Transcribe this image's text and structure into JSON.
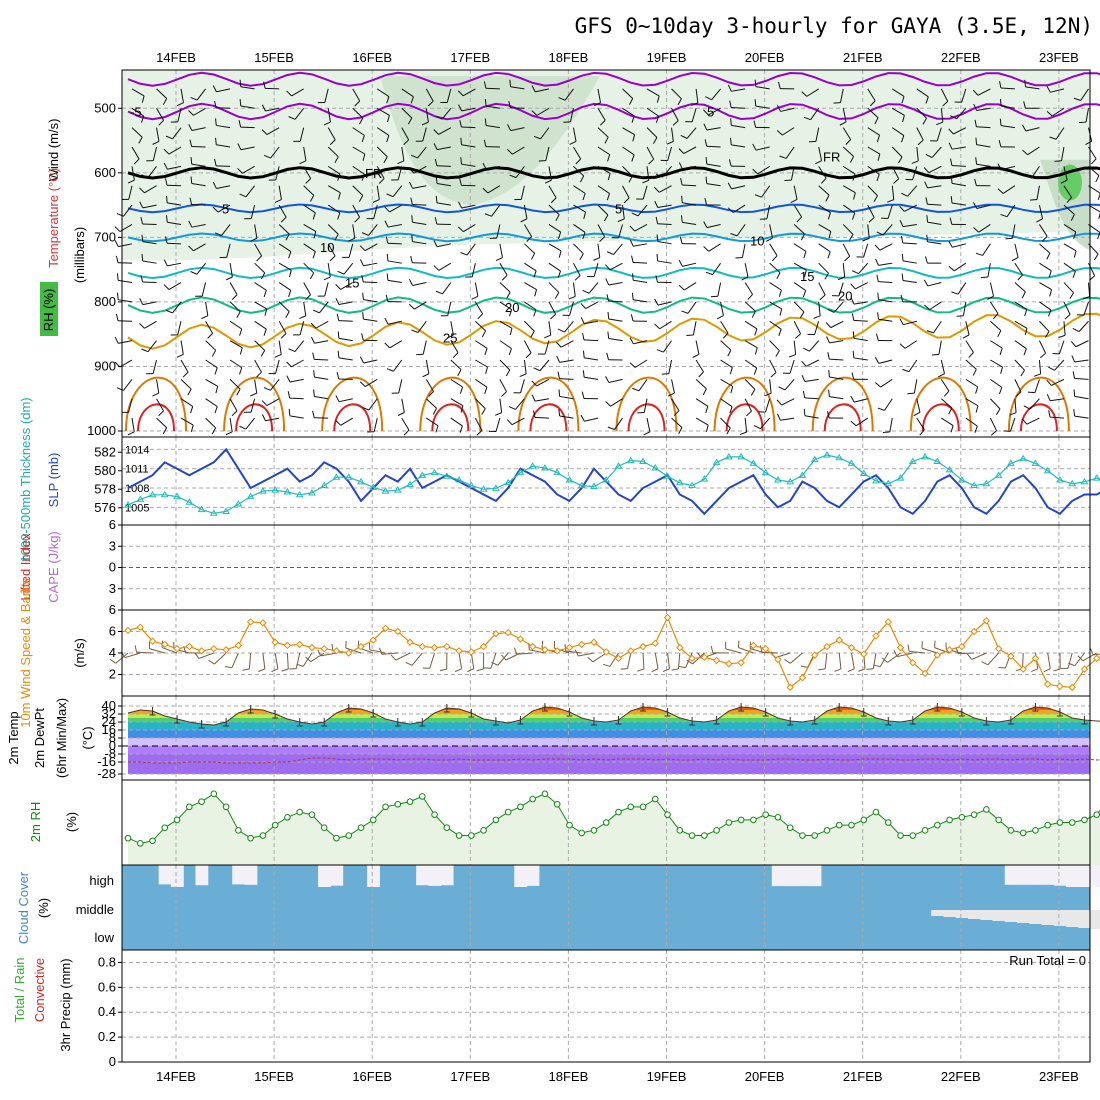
{
  "chart_data": {
    "title": "GFS 0~10day 3-hourly for GAYA (3.5E, 12N)",
    "dates": [
      "14FEB",
      "15FEB",
      "16FEB",
      "17FEB",
      "18FEB",
      "19FEB",
      "20FEB",
      "21FEB",
      "22FEB",
      "23FEB"
    ],
    "panels": [
      {
        "id": "upper_air",
        "type": "heatmap",
        "labels": {
          "wind": "Wind (m/s)",
          "temp": "Temperature (°C)",
          "rh": "RH (%)",
          "units": "(millibars)"
        },
        "y_ticks": [
          500,
          600,
          700,
          800,
          900,
          1000
        ],
        "ylim": [
          450,
          1000
        ],
        "isotherm_labels": [
          "-5",
          "5",
          "FR",
          "5",
          "10",
          "15",
          "20",
          "25",
          "10",
          "30"
        ],
        "temp_line_colors": {
          "-5": "#9900cc",
          "FR": "#000000",
          "5": "#1155dd",
          "10": "#1199dd",
          "15": "#11bbbb",
          "20": "#11bb88",
          "25": "#dd9900",
          "30": "#dd5500",
          "35": "#dd2222"
        }
      },
      {
        "id": "thickness_slp",
        "type": "line",
        "labels": {
          "left": "1000-500mb Thickness (dm)",
          "right": "SLP (mb)"
        },
        "left_ticks": [
          576,
          578,
          580,
          582
        ],
        "right_ticks": [
          1005,
          1008,
          1011,
          1014
        ],
        "x": [
          0,
          3,
          6,
          9,
          12,
          15,
          18,
          21,
          24,
          27,
          30,
          33,
          36,
          39,
          42,
          45,
          48,
          51,
          54,
          57,
          60,
          63,
          66,
          69,
          72,
          75,
          78,
          81,
          84,
          87,
          90,
          93,
          96,
          99,
          102,
          105,
          108,
          111,
          114,
          117,
          120,
          123,
          126,
          129,
          132,
          135,
          138,
          141,
          144,
          147,
          150,
          153,
          156,
          159,
          162,
          165,
          168,
          171,
          174,
          177,
          180,
          183,
          186,
          189,
          192,
          195,
          198,
          201,
          204,
          207,
          210,
          213,
          216,
          219,
          222,
          225,
          228,
          231,
          234,
          237,
          240
        ],
        "series": [
          {
            "name": "1000-500mb Thickness",
            "units": "dm",
            "color": "#22bbbb",
            "values": [
              576.3,
              576.9,
              577.4,
              577.4,
              577.2,
              576.6,
              575.8,
              575.4,
              575.6,
              576.4,
              577.2,
              577.8,
              577.9,
              577.7,
              577.4,
              577.6,
              578.4,
              579.3,
              579.3,
              578.8,
              578.2,
              577.8,
              577.9,
              578.5,
              579.5,
              579.8,
              579.4,
              579.0,
              578.4,
              578.0,
              578.1,
              578.7,
              579.8,
              580.5,
              580.3,
              579.8,
              579.0,
              578.4,
              578.3,
              579.0,
              580.5,
              581.1,
              581.0,
              580.3,
              579.4,
              578.7,
              578.4,
              579.1,
              580.9,
              581.5,
              581.5,
              580.8,
              579.8,
              579.0,
              578.8,
              579.5,
              581.2,
              581.7,
              581.4,
              580.8,
              579.7,
              578.9,
              578.6,
              579.2,
              581.0,
              581.5,
              581.0,
              580.1,
              579.0,
              578.4,
              578.6,
              579.5,
              580.8,
              581.3,
              580.8,
              580.0,
              579.0,
              578.6,
              578.8,
              579.2,
              578.7
            ]
          },
          {
            "name": "SLP",
            "units": "mb",
            "color": "#2244cc",
            "values": [
              1008,
              1009,
              1010,
              1012,
              1011,
              1010,
              1011,
              1012,
              1014,
              1011,
              1008,
              1009,
              1010,
              1011,
              1009,
              1010,
              1012,
              1011,
              1009,
              1006,
              1008,
              1010,
              1009,
              1011,
              1008,
              1009,
              1010,
              1009,
              1008,
              1007,
              1006,
              1008,
              1011,
              1010,
              1009,
              1007,
              1006,
              1008,
              1011,
              1009,
              1007,
              1006,
              1008,
              1009,
              1010,
              1007,
              1006,
              1004,
              1006,
              1008,
              1009,
              1010,
              1007,
              1005,
              1006,
              1009,
              1008,
              1006,
              1005,
              1007,
              1009,
              1010,
              1008,
              1005,
              1004,
              1006,
              1009,
              1010,
              1008,
              1005,
              1004,
              1006,
              1009,
              1010,
              1008,
              1005,
              1004,
              1006,
              1007,
              1007,
              1008
            ]
          }
        ]
      },
      {
        "id": "instability",
        "type": "line",
        "labels": {
          "left": "Lifted Index",
          "right": "CAPE (J/kg)"
        },
        "y_ticks": [
          -6,
          -3,
          0,
          3,
          6
        ],
        "ylim": [
          -6,
          6
        ],
        "reference_line": 0
      },
      {
        "id": "wind10m",
        "type": "line",
        "labels": {
          "main": "10m Wind Speed & Barbs",
          "units": "(m/s)"
        },
        "y_ticks": [
          2,
          4,
          6
        ],
        "ylim": [
          0,
          8
        ],
        "series": [
          {
            "name": "10m Wind Speed",
            "color": "#ee8800",
            "values": [
              6.1,
              6.4,
              5.1,
              4.8,
              4.4,
              4.6,
              4.2,
              4.4,
              4.3,
              4.7,
              6.9,
              6.8,
              5.0,
              4.7,
              4.8,
              4.5,
              4.4,
              4.2,
              4.0,
              4.6,
              5.2,
              6.3,
              6.0,
              5.0,
              4.6,
              4.5,
              4.6,
              4.2,
              4.1,
              4.6,
              5.8,
              5.9,
              5.3,
              4.6,
              4.3,
              4.2,
              4.5,
              4.8,
              5.0,
              4.1,
              3.5,
              4.2,
              4.6,
              4.9,
              7.3,
              4.5,
              3.5,
              3.6,
              3.3,
              3.0,
              3.1,
              4.7,
              4.4,
              3.4,
              0.8,
              1.7,
              3.8,
              4.6,
              5.2,
              4.5,
              3.9,
              5.6,
              6.9,
              4.5,
              3.1,
              2.1,
              3.8,
              4.3,
              4.6,
              6.0,
              7.0,
              4.4,
              3.7,
              2.5,
              3.5,
              1.1,
              0.9,
              0.8,
              2.5,
              3.5,
              3.2
            ]
          }
        ]
      },
      {
        "id": "temperature2m",
        "type": "area",
        "labels": {
          "main": "2m Temp",
          "dewpt": "2m DewPt",
          "minmax": "(6hr Min/Max)",
          "units": "(°C)"
        },
        "y_ticks": [
          "40",
          "32",
          "24",
          "16",
          "8",
          "0",
          "-8",
          "-16",
          "-28"
        ],
        "ylim": [
          -28,
          40
        ],
        "series": [
          {
            "name": "2m Temp",
            "values": [
              33,
              36,
              35,
              30,
              27,
              24,
              22,
              21,
              24,
              33,
              37,
              36,
              32,
              27,
              24,
              22,
              24,
              33,
              38,
              37,
              33,
              27,
              24,
              22,
              24,
              33,
              38,
              37,
              33,
              27,
              25,
              23,
              26,
              35,
              39,
              38,
              34,
              28,
              25,
              24,
              26,
              35,
              39,
              38,
              34,
              28,
              25,
              24,
              26,
              35,
              39,
              38,
              34,
              28,
              25,
              24,
              26,
              35,
              39,
              38,
              34,
              28,
              25,
              24,
              26,
              35,
              39,
              38,
              34,
              28,
              25,
              24,
              26,
              35,
              39,
              38,
              34,
              28,
              26,
              25,
              24
            ]
          },
          {
            "name": "2m DewPt",
            "values": [
              -16,
              -16,
              -17,
              -17,
              -17,
              -16,
              -16,
              -16,
              -17,
              -17,
              -17,
              -17,
              -16,
              -16,
              -14,
              -12,
              -12,
              -13,
              -14,
              -13,
              -13,
              -13,
              -14,
              -13,
              -13,
              -14,
              -14,
              -13,
              -14,
              -14,
              -14,
              -14,
              -13,
              -14,
              -13,
              -13,
              -13,
              -14,
              -13,
              -14,
              -13,
              -13,
              -13,
              -14,
              -13,
              -14,
              -14,
              -13,
              -14,
              -13,
              -14,
              -14,
              -14,
              -13,
              -13,
              -14,
              -14,
              -13,
              -14,
              -14,
              -13,
              -13,
              -13,
              -14,
              -14,
              -13,
              -13,
              -14,
              -13,
              -14,
              -13,
              -13,
              -14,
              -13,
              -13,
              -14,
              -13,
              -14,
              -13,
              -14,
              -13
            ]
          }
        ]
      },
      {
        "id": "rh2m",
        "type": "line",
        "labels": {
          "main": "2m RH",
          "units": "(%)"
        },
        "series": [
          {
            "name": "2m RH",
            "color": "#118811",
            "values": [
              8,
              6,
              7,
              12,
              15,
              20,
              22,
              25,
              20,
              11,
              8,
              9,
              13,
              16,
              18,
              17,
              12,
              8,
              9,
              12,
              15,
              20,
              21,
              22,
              24,
              17,
              12,
              9,
              9,
              11,
              15,
              18,
              20,
              23,
              25,
              21,
              13,
              10,
              11,
              14,
              18,
              20,
              20,
              23,
              17,
              11,
              9,
              9,
              11,
              14,
              15,
              15,
              17,
              16,
              12,
              9,
              9,
              11,
              13,
              13,
              15,
              18,
              14,
              9,
              9,
              11,
              13,
              15,
              16,
              17,
              19,
              15,
              11,
              10,
              11,
              13,
              14,
              14,
              15,
              17,
              23
            ]
          }
        ]
      },
      {
        "id": "cloud",
        "type": "bar",
        "labels": {
          "main": "Cloud Cover",
          "units": "(%)",
          "levels": [
            "high",
            "middle",
            "low"
          ]
        },
        "high": [
          0,
          0,
          0,
          88,
          100,
          0,
          92,
          0,
          0,
          88,
          90,
          0,
          0,
          0,
          0,
          0,
          100,
          94,
          0,
          0,
          100,
          0,
          0,
          0,
          92,
          95,
          92,
          0,
          0,
          0,
          0,
          0,
          100,
          95,
          0,
          0,
          0,
          0,
          0,
          0,
          0,
          0,
          0,
          0,
          0,
          0,
          0,
          0,
          0,
          0,
          0,
          0,
          0,
          96,
          96,
          96,
          96,
          0,
          0,
          0,
          0,
          0,
          0,
          0,
          0,
          0,
          0,
          0,
          0,
          0,
          0,
          0,
          90,
          90,
          90,
          90,
          94,
          100,
          100,
          100,
          100
        ],
        "middle": [
          100,
          100,
          100,
          100,
          100,
          100,
          100,
          100,
          100,
          100,
          100,
          100,
          100,
          100,
          100,
          100,
          100,
          100,
          100,
          100,
          100,
          100,
          100,
          100,
          100,
          100,
          100,
          100,
          100,
          100,
          100,
          100,
          100,
          100,
          100,
          100,
          100,
          100,
          100,
          100,
          100,
          100,
          100,
          100,
          100,
          100,
          100,
          100,
          100,
          100,
          100,
          100,
          100,
          100,
          100,
          100,
          100,
          100,
          100,
          100,
          100,
          100,
          100,
          100,
          100,
          100,
          100,
          100,
          100,
          100,
          100,
          100,
          100,
          100,
          100,
          100,
          100,
          100,
          100,
          100,
          100
        ]
      },
      {
        "id": "precip",
        "type": "bar",
        "labels": {
          "left_a": "Total / Rain",
          "left_b": "Convective",
          "main": "3hr Precip (mm)",
          "run_total": "Run Total = 0"
        },
        "y_ticks": [
          "0",
          "0.2",
          "0.4",
          "0.6",
          "0.8"
        ],
        "ylim": [
          0,
          0.9
        ],
        "values": [
          0,
          0,
          0,
          0,
          0,
          0,
          0,
          0,
          0,
          0,
          0,
          0,
          0,
          0,
          0,
          0,
          0,
          0,
          0,
          0,
          0,
          0,
          0,
          0,
          0,
          0,
          0,
          0,
          0,
          0,
          0,
          0,
          0,
          0,
          0,
          0,
          0,
          0,
          0,
          0,
          0,
          0,
          0,
          0,
          0,
          0,
          0,
          0,
          0,
          0,
          0,
          0,
          0,
          0,
          0,
          0,
          0,
          0,
          0,
          0,
          0,
          0,
          0,
          0,
          0,
          0,
          0,
          0,
          0,
          0,
          0,
          0,
          0,
          0,
          0,
          0,
          0,
          0,
          0,
          0,
          0
        ]
      }
    ]
  }
}
